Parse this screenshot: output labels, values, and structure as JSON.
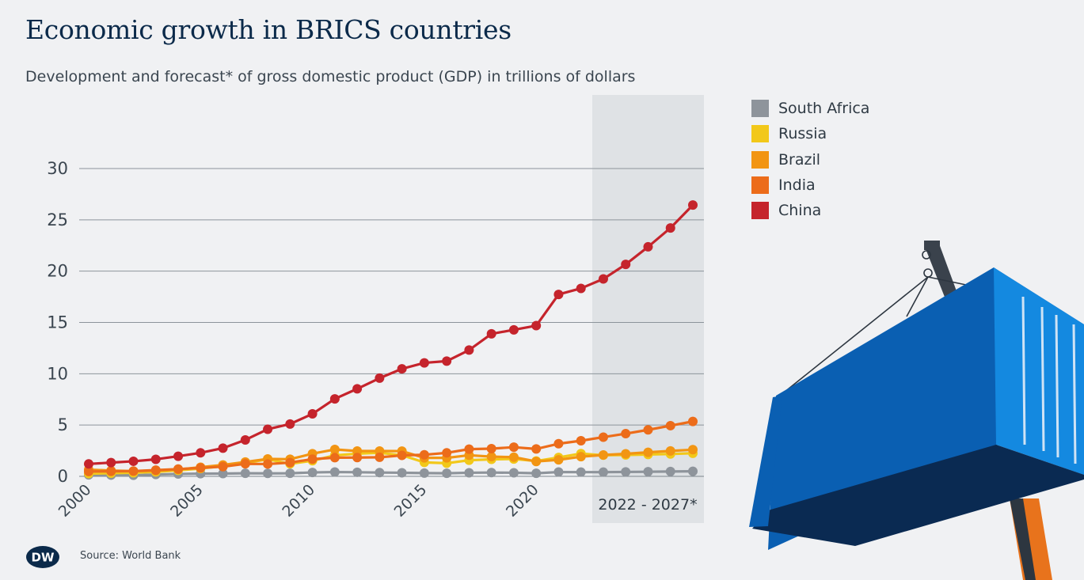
{
  "header": {
    "title": "Economic growth in BRICS countries",
    "subtitle": "Development and forecast* of gross domestic product (GDP) in trillions of dollars"
  },
  "forecast_label": "2022 - 2027*",
  "footer": {
    "logo_text": "DW",
    "source": "Source: World Bank"
  },
  "chart_data": {
    "type": "line",
    "ylim": [
      0,
      30
    ],
    "yticks": [
      "0",
      "5",
      "10",
      "15",
      "20",
      "25",
      "30"
    ],
    "xtick_labels": [
      "2000",
      "2005",
      "2010",
      "2015",
      "2020"
    ],
    "xlim": [
      1999.5,
      2027.5
    ],
    "grid": true,
    "legend_position": "right",
    "forecast_range": [
      2022,
      2027
    ],
    "x": [
      2000,
      2001,
      2002,
      2003,
      2004,
      2005,
      2006,
      2007,
      2008,
      2009,
      2010,
      2011,
      2012,
      2013,
      2014,
      2015,
      2016,
      2017,
      2018,
      2019,
      2020,
      2021,
      2022,
      2023,
      2024,
      2025,
      2026,
      2027
    ],
    "series": [
      {
        "name": "South Africa",
        "color": "#8e949b",
        "values": [
          0.14,
          0.12,
          0.11,
          0.18,
          0.23,
          0.26,
          0.27,
          0.3,
          0.29,
          0.3,
          0.38,
          0.42,
          0.4,
          0.37,
          0.35,
          0.32,
          0.3,
          0.35,
          0.37,
          0.35,
          0.3,
          0.42,
          0.41,
          0.41,
          0.43,
          0.45,
          0.47,
          0.49
        ]
      },
      {
        "name": "Russia",
        "color": "#f2c81a",
        "values": [
          0.26,
          0.31,
          0.35,
          0.43,
          0.59,
          0.76,
          0.99,
          1.3,
          1.66,
          1.22,
          1.52,
          2.05,
          2.21,
          2.29,
          2.06,
          1.36,
          1.28,
          1.57,
          1.66,
          1.69,
          1.49,
          1.84,
          2.22,
          2.06,
          2.08,
          2.13,
          2.18,
          2.25
        ]
      },
      {
        "name": "Brazil",
        "color": "#f29513",
        "values": [
          0.66,
          0.56,
          0.51,
          0.56,
          0.67,
          0.89,
          1.11,
          1.4,
          1.7,
          1.67,
          2.21,
          2.62,
          2.47,
          2.47,
          2.46,
          1.8,
          1.8,
          2.06,
          1.92,
          1.87,
          1.45,
          1.61,
          1.92,
          2.08,
          2.2,
          2.34,
          2.48,
          2.6
        ]
      },
      {
        "name": "India",
        "color": "#ec6c1a",
        "values": [
          0.47,
          0.49,
          0.51,
          0.61,
          0.71,
          0.82,
          0.94,
          1.22,
          1.2,
          1.34,
          1.68,
          1.82,
          1.83,
          1.86,
          2.04,
          2.1,
          2.29,
          2.65,
          2.7,
          2.84,
          2.67,
          3.18,
          3.47,
          3.82,
          4.16,
          4.53,
          4.94,
          5.35
        ]
      },
      {
        "name": "China",
        "color": "#c5242c",
        "values": [
          1.21,
          1.34,
          1.47,
          1.66,
          1.96,
          2.29,
          2.75,
          3.55,
          4.59,
          5.1,
          6.09,
          7.55,
          8.53,
          9.57,
          10.48,
          11.06,
          11.23,
          12.31,
          13.89,
          14.28,
          14.69,
          17.73,
          18.32,
          19.24,
          20.66,
          22.37,
          24.21,
          26.44
        ]
      }
    ]
  }
}
